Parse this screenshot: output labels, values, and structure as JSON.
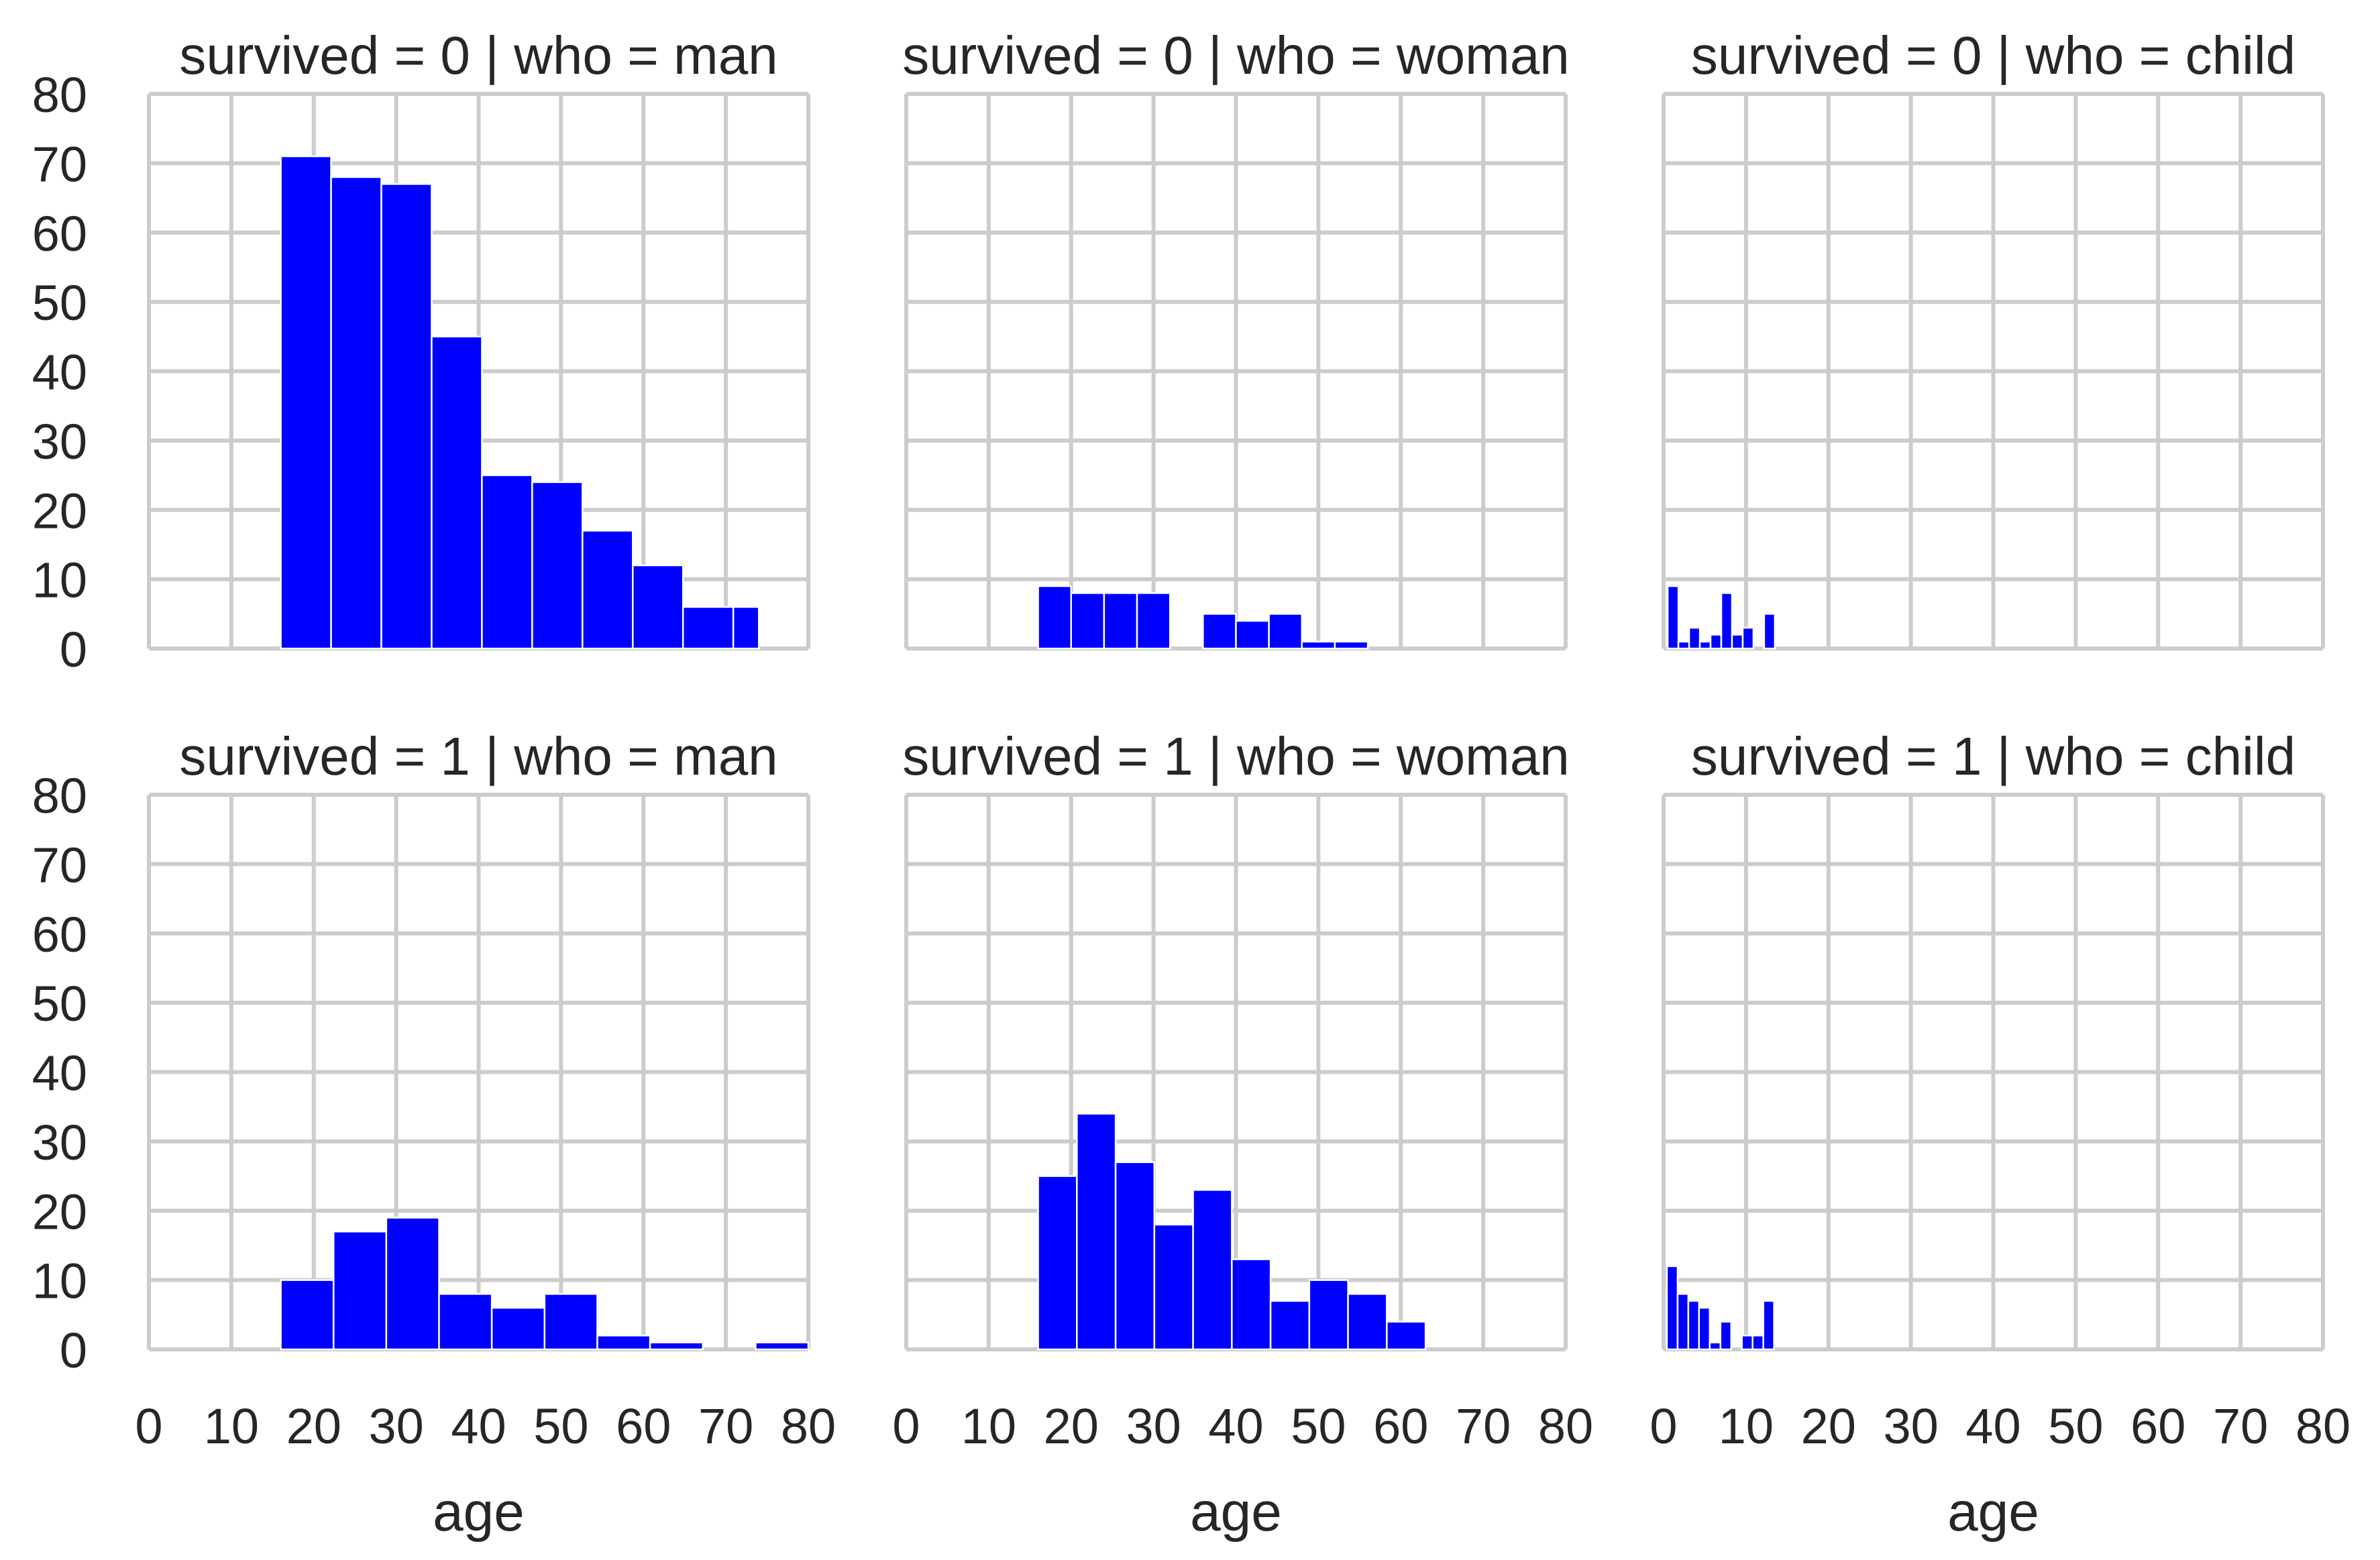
{
  "chart_data": {
    "type": "bar",
    "subtype": "histogram-facet-grid",
    "rows_variable": "survived",
    "cols_variable": "who",
    "xlabel": "age",
    "xlim": [
      0,
      80
    ],
    "ylim": [
      0,
      80
    ],
    "xticks": [
      0,
      10,
      20,
      30,
      40,
      50,
      60,
      70,
      80
    ],
    "yticks": [
      0,
      10,
      20,
      30,
      40,
      50,
      60,
      70,
      80
    ],
    "grid": true,
    "bar_color": "#0000ff",
    "grid_color": "#cccccc",
    "text_color": "#262626",
    "facets": [
      {
        "title": "survived = 0 | who = man",
        "bins": [
          {
            "x0": 16,
            "x1": 22.1,
            "count": 71
          },
          {
            "x0": 22.1,
            "x1": 28.2,
            "count": 68
          },
          {
            "x0": 28.2,
            "x1": 34.3,
            "count": 67
          },
          {
            "x0": 34.3,
            "x1": 40.4,
            "count": 45
          },
          {
            "x0": 40.4,
            "x1": 46.5,
            "count": 25
          },
          {
            "x0": 46.5,
            "x1": 52.6,
            "count": 24
          },
          {
            "x0": 52.6,
            "x1": 58.7,
            "count": 17
          },
          {
            "x0": 58.7,
            "x1": 64.8,
            "count": 12
          },
          {
            "x0": 64.8,
            "x1": 70.9,
            "count": 6
          },
          {
            "x0": 70.9,
            "x1": 74,
            "count": 6
          }
        ]
      },
      {
        "title": "survived = 0 | who = woman",
        "bins": [
          {
            "x0": 16,
            "x1": 20,
            "count": 9
          },
          {
            "x0": 20,
            "x1": 24,
            "count": 8
          },
          {
            "x0": 24,
            "x1": 28,
            "count": 8
          },
          {
            "x0": 28,
            "x1": 32,
            "count": 8
          },
          {
            "x0": 32,
            "x1": 36,
            "count": 0
          },
          {
            "x0": 36,
            "x1": 40,
            "count": 5
          },
          {
            "x0": 40,
            "x1": 44,
            "count": 4
          },
          {
            "x0": 44,
            "x1": 48,
            "count": 5
          },
          {
            "x0": 48,
            "x1": 52,
            "count": 1
          },
          {
            "x0": 52,
            "x1": 56,
            "count": 1
          }
        ]
      },
      {
        "title": "survived = 0 | who = child",
        "bins": [
          {
            "x0": 0.5,
            "x1": 1.8,
            "count": 9
          },
          {
            "x0": 1.8,
            "x1": 3.1,
            "count": 1
          },
          {
            "x0": 3.1,
            "x1": 4.4,
            "count": 3
          },
          {
            "x0": 4.4,
            "x1": 5.7,
            "count": 1
          },
          {
            "x0": 5.7,
            "x1": 7.0,
            "count": 2
          },
          {
            "x0": 7.0,
            "x1": 8.3,
            "count": 8
          },
          {
            "x0": 8.3,
            "x1": 9.6,
            "count": 2
          },
          {
            "x0": 9.6,
            "x1": 10.9,
            "count": 3
          },
          {
            "x0": 10.9,
            "x1": 12.2,
            "count": 0
          },
          {
            "x0": 12.2,
            "x1": 13.5,
            "count": 5
          }
        ]
      },
      {
        "title": "survived = 1 | who = man",
        "bins": [
          {
            "x0": 16,
            "x1": 22.4,
            "count": 10
          },
          {
            "x0": 22.4,
            "x1": 28.8,
            "count": 17
          },
          {
            "x0": 28.8,
            "x1": 35.2,
            "count": 19
          },
          {
            "x0": 35.2,
            "x1": 41.6,
            "count": 8
          },
          {
            "x0": 41.6,
            "x1": 48,
            "count": 6
          },
          {
            "x0": 48,
            "x1": 54.4,
            "count": 8
          },
          {
            "x0": 54.4,
            "x1": 60.8,
            "count": 2
          },
          {
            "x0": 60.8,
            "x1": 67.2,
            "count": 1
          },
          {
            "x0": 67.2,
            "x1": 73.6,
            "count": 0
          },
          {
            "x0": 73.6,
            "x1": 80,
            "count": 1
          }
        ]
      },
      {
        "title": "survived = 1 | who = woman",
        "bins": [
          {
            "x0": 16,
            "x1": 20.7,
            "count": 25
          },
          {
            "x0": 20.7,
            "x1": 25.4,
            "count": 34
          },
          {
            "x0": 25.4,
            "x1": 30.1,
            "count": 27
          },
          {
            "x0": 30.1,
            "x1": 34.8,
            "count": 18
          },
          {
            "x0": 34.8,
            "x1": 39.5,
            "count": 23
          },
          {
            "x0": 39.5,
            "x1": 44.2,
            "count": 13
          },
          {
            "x0": 44.2,
            "x1": 48.9,
            "count": 7
          },
          {
            "x0": 48.9,
            "x1": 53.6,
            "count": 10
          },
          {
            "x0": 53.6,
            "x1": 58.3,
            "count": 8
          },
          {
            "x0": 58.3,
            "x1": 63,
            "count": 4
          }
        ]
      },
      {
        "title": "survived = 1 | who = child",
        "bins": [
          {
            "x0": 0.4,
            "x1": 1.7,
            "count": 12
          },
          {
            "x0": 1.7,
            "x1": 3.0,
            "count": 8
          },
          {
            "x0": 3.0,
            "x1": 4.3,
            "count": 7
          },
          {
            "x0": 4.3,
            "x1": 5.6,
            "count": 6
          },
          {
            "x0": 5.6,
            "x1": 6.9,
            "count": 1
          },
          {
            "x0": 6.9,
            "x1": 8.2,
            "count": 4
          },
          {
            "x0": 8.2,
            "x1": 9.5,
            "count": 0
          },
          {
            "x0": 9.5,
            "x1": 10.8,
            "count": 2
          },
          {
            "x0": 10.8,
            "x1": 12.1,
            "count": 2
          },
          {
            "x0": 12.1,
            "x1": 13.4,
            "count": 7
          }
        ]
      }
    ]
  }
}
